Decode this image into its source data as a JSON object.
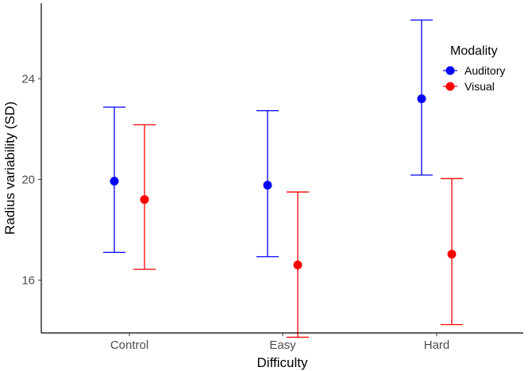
{
  "chart_data": {
    "type": "scatter",
    "title": "",
    "xlabel": "Difficulty",
    "ylabel": "Radius variability (SD)",
    "categories": [
      "Control",
      "Easy",
      "Hard"
    ],
    "ylim": [
      13.9,
      27.0
    ],
    "yticks": [
      16,
      20,
      24
    ],
    "ytick_labels": [
      "16",
      "20",
      "24"
    ],
    "grid": false,
    "legend": {
      "title": "Modality",
      "position": "top-right"
    },
    "series": [
      {
        "name": "Auditory",
        "color": "#0000ff",
        "values": [
          19.93,
          19.77,
          23.2
        ],
        "lower": [
          17.1,
          16.93,
          20.17
        ],
        "upper": [
          22.87,
          22.73,
          26.33
        ]
      },
      {
        "name": "Visual",
        "color": "#ff0000",
        "values": [
          19.2,
          16.6,
          17.03
        ],
        "lower": [
          16.43,
          13.73,
          14.23
        ],
        "upper": [
          22.17,
          19.5,
          20.03
        ]
      }
    ]
  }
}
